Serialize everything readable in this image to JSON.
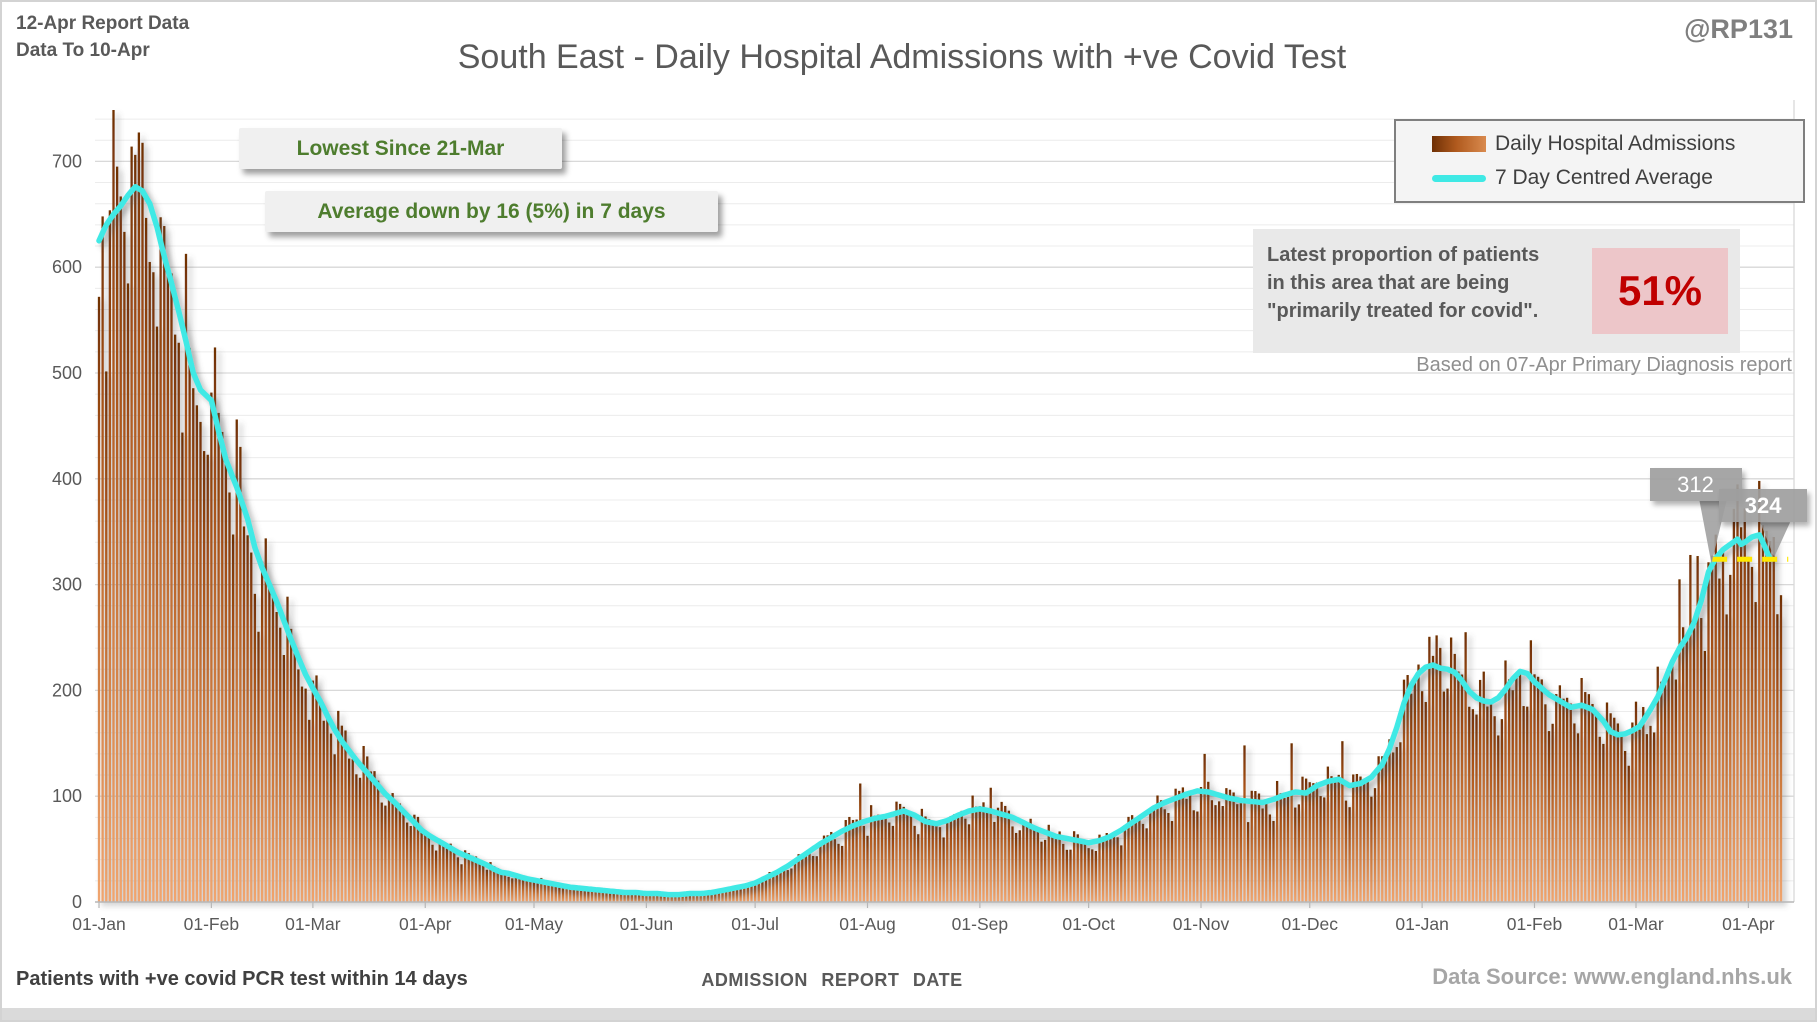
{
  "header": {
    "report_line1": "12-Apr Report Data",
    "report_line2": "Data To 10-Apr",
    "watermark": "@RP131",
    "title": "South East - Daily Hospital Admissions with +ve Covid Test"
  },
  "legend": {
    "items": [
      {
        "label": "Daily Hospital Admissions",
        "type": "bar"
      },
      {
        "label": "7 Day Centred Average",
        "type": "line"
      }
    ]
  },
  "annotations": {
    "chip1": "Lowest Since 21-Mar",
    "chip2": "Average down by 16 (5%) in 7 days"
  },
  "info_panel": {
    "line1": "Latest proportion of patients",
    "line2": "in this area that are being",
    "line3": "\"primarily treated for covid\".",
    "value": "51%",
    "footnote": "Based on 07-Apr Primary Diagnosis report"
  },
  "callouts": [
    {
      "label": "312",
      "day": 444,
      "value": 312
    },
    {
      "label": "324",
      "day": 461,
      "value": 324
    }
  ],
  "footer": {
    "left": "Patients with +ve covid PCR test within 14 days",
    "center": "ADMISSION REPORT DATE",
    "right": "Data Source: www.england.nhs.uk"
  },
  "chart_data": {
    "type": "bar",
    "title": "South East - Daily Hospital Admissions with +ve Covid Test",
    "xlabel": "ADMISSION REPORT DATE",
    "ylabel": "Patients with +ve covid PCR test within 14 days",
    "x_start_date": "2021-01-01",
    "x_end_date": "2022-04-10",
    "days_total": 465,
    "avg_days_total": 462,
    "grid": true,
    "legend_position": "top-right",
    "y_axis": {
      "min": 0,
      "max": 720,
      "major_step": 100,
      "minor_step": 20,
      "top_minor_extent": 740
    },
    "x_axis": {
      "months": [
        {
          "label": "01-Jan",
          "day": 0
        },
        {
          "label": "01-Feb",
          "day": 31
        },
        {
          "label": "01-Mar",
          "day": 59
        },
        {
          "label": "01-Apr",
          "day": 90
        },
        {
          "label": "01-May",
          "day": 120
        },
        {
          "label": "01-Jun",
          "day": 151
        },
        {
          "label": "01-Jul",
          "day": 181
        },
        {
          "label": "01-Aug",
          "day": 212
        },
        {
          "label": "01-Sep",
          "day": 243
        },
        {
          "label": "01-Oct",
          "day": 273
        },
        {
          "label": "01-Nov",
          "day": 304
        },
        {
          "label": "01-Dec",
          "day": 334
        },
        {
          "label": "01-Jan",
          "day": 365
        },
        {
          "label": "01-Feb",
          "day": 396
        },
        {
          "label": "01-Mar",
          "day": 424
        },
        {
          "label": "01-Apr",
          "day": 455
        }
      ]
    },
    "series": [
      {
        "name": "Daily Hospital Admissions",
        "type": "bar"
      },
      {
        "name": "7 Day Centred Average",
        "type": "line"
      }
    ],
    "avg_anchors": [
      [
        0,
        625
      ],
      [
        2,
        640
      ],
      [
        4,
        650
      ],
      [
        6,
        658
      ],
      [
        8,
        668
      ],
      [
        10,
        676
      ],
      [
        12,
        672
      ],
      [
        14,
        660
      ],
      [
        16,
        638
      ],
      [
        18,
        610
      ],
      [
        20,
        585
      ],
      [
        22,
        558
      ],
      [
        24,
        530
      ],
      [
        26,
        500
      ],
      [
        28,
        484
      ],
      [
        31,
        474
      ],
      [
        33,
        445
      ],
      [
        35,
        418
      ],
      [
        38,
        392
      ],
      [
        41,
        362
      ],
      [
        43,
        335
      ],
      [
        45,
        316
      ],
      [
        47,
        300
      ],
      [
        49,
        284
      ],
      [
        51,
        266
      ],
      [
        53,
        248
      ],
      [
        55,
        231
      ],
      [
        57,
        215
      ],
      [
        59,
        202
      ],
      [
        61,
        190
      ],
      [
        63,
        176
      ],
      [
        65,
        163
      ],
      [
        67,
        152
      ],
      [
        69,
        143
      ],
      [
        71,
        134
      ],
      [
        73,
        126
      ],
      [
        75,
        118
      ],
      [
        77,
        110
      ],
      [
        79,
        102
      ],
      [
        81,
        96
      ],
      [
        83,
        89
      ],
      [
        85,
        82
      ],
      [
        87,
        75
      ],
      [
        89,
        68
      ],
      [
        91,
        63
      ],
      [
        93,
        59
      ],
      [
        95,
        55
      ],
      [
        97,
        51
      ],
      [
        99,
        47
      ],
      [
        101,
        44
      ],
      [
        103,
        41
      ],
      [
        105,
        38
      ],
      [
        107,
        35
      ],
      [
        109,
        31
      ],
      [
        111,
        28
      ],
      [
        113,
        27
      ],
      [
        115,
        25
      ],
      [
        118,
        22
      ],
      [
        121,
        20
      ],
      [
        124,
        18
      ],
      [
        127,
        16
      ],
      [
        130,
        14
      ],
      [
        133,
        13
      ],
      [
        136,
        12
      ],
      [
        139,
        11
      ],
      [
        142,
        10
      ],
      [
        145,
        9
      ],
      [
        148,
        9
      ],
      [
        151,
        8
      ],
      [
        154,
        8
      ],
      [
        157,
        7
      ],
      [
        160,
        7
      ],
      [
        163,
        8
      ],
      [
        166,
        8
      ],
      [
        169,
        9
      ],
      [
        172,
        11
      ],
      [
        175,
        13
      ],
      [
        178,
        15
      ],
      [
        181,
        18
      ],
      [
        184,
        23
      ],
      [
        187,
        28
      ],
      [
        190,
        34
      ],
      [
        193,
        41
      ],
      [
        196,
        48
      ],
      [
        199,
        55
      ],
      [
        202,
        61
      ],
      [
        205,
        67
      ],
      [
        208,
        72
      ],
      [
        211,
        76
      ],
      [
        214,
        79
      ],
      [
        217,
        81
      ],
      [
        220,
        84
      ],
      [
        222,
        86
      ],
      [
        225,
        82
      ],
      [
        228,
        76
      ],
      [
        231,
        74
      ],
      [
        234,
        77
      ],
      [
        237,
        82
      ],
      [
        240,
        86
      ],
      [
        243,
        88
      ],
      [
        246,
        86
      ],
      [
        249,
        83
      ],
      [
        252,
        80
      ],
      [
        255,
        75
      ],
      [
        258,
        70
      ],
      [
        261,
        66
      ],
      [
        264,
        62
      ],
      [
        267,
        60
      ],
      [
        270,
        58
      ],
      [
        273,
        56
      ],
      [
        276,
        58
      ],
      [
        279,
        62
      ],
      [
        282,
        68
      ],
      [
        285,
        75
      ],
      [
        288,
        82
      ],
      [
        291,
        89
      ],
      [
        294,
        94
      ],
      [
        297,
        98
      ],
      [
        300,
        102
      ],
      [
        303,
        105
      ],
      [
        306,
        104
      ],
      [
        309,
        101
      ],
      [
        312,
        98
      ],
      [
        315,
        96
      ],
      [
        318,
        95
      ],
      [
        321,
        94
      ],
      [
        324,
        97
      ],
      [
        327,
        101
      ],
      [
        330,
        104
      ],
      [
        333,
        103
      ],
      [
        336,
        110
      ],
      [
        339,
        114
      ],
      [
        342,
        116
      ],
      [
        345,
        110
      ],
      [
        348,
        112
      ],
      [
        351,
        118
      ],
      [
        354,
        130
      ],
      [
        356,
        145
      ],
      [
        358,
        165
      ],
      [
        360,
        188
      ],
      [
        362,
        205
      ],
      [
        364,
        216
      ],
      [
        366,
        222
      ],
      [
        368,
        224
      ],
      [
        370,
        221
      ],
      [
        372,
        220
      ],
      [
        374,
        217
      ],
      [
        376,
        209
      ],
      [
        378,
        199
      ],
      [
        380,
        193
      ],
      [
        382,
        190
      ],
      [
        384,
        189
      ],
      [
        386,
        193
      ],
      [
        388,
        201
      ],
      [
        390,
        211
      ],
      [
        392,
        218
      ],
      [
        394,
        216
      ],
      [
        396,
        208
      ],
      [
        398,
        202
      ],
      [
        400,
        196
      ],
      [
        403,
        190
      ],
      [
        406,
        184
      ],
      [
        409,
        186
      ],
      [
        412,
        182
      ],
      [
        415,
        171
      ],
      [
        417,
        161
      ],
      [
        419,
        158
      ],
      [
        421,
        159
      ],
      [
        423,
        162
      ],
      [
        425,
        166
      ],
      [
        428,
        182
      ],
      [
        430,
        194
      ],
      [
        432,
        210
      ],
      [
        434,
        227
      ],
      [
        436,
        240
      ],
      [
        438,
        250
      ],
      [
        440,
        264
      ],
      [
        442,
        285
      ],
      [
        444,
        312
      ],
      [
        446,
        325
      ],
      [
        448,
        333
      ],
      [
        450,
        338
      ],
      [
        452,
        343
      ],
      [
        453,
        338
      ],
      [
        454,
        340
      ],
      [
        456,
        345
      ],
      [
        458,
        347
      ],
      [
        459,
        340
      ],
      [
        460,
        332
      ],
      [
        461,
        324
      ]
    ],
    "weekday_factors": [
      1.09,
      1.07,
      1.03,
      1.01,
      0.97,
      0.88,
      0.85
    ],
    "weekday_offset": 4,
    "jitter": 0.16,
    "seed": 7,
    "bar_overrides": {
      "0": 572,
      "1": 648,
      "9": 714,
      "210": 112,
      "246": 108,
      "305": 140,
      "316": 148,
      "329": 150,
      "343": 152,
      "369": 252,
      "373": 250,
      "377": 255,
      "436": 305,
      "439": 328,
      "441": 327,
      "454": 372,
      "458": 398,
      "462": 345,
      "463": 272,
      "464": 290
    },
    "dash_marker": {
      "value": 324,
      "from_day": 445,
      "to_day": 466,
      "color": "#ffe800"
    },
    "colors": {
      "bar_top": "#6f3005",
      "bar_mid": "#b05a1e",
      "bar_bottom": "#f0a56f",
      "line": "#3fe9e5",
      "grid_minor": "#ececec",
      "grid_major": "#d9d9d9",
      "axis": "#b7b7b7",
      "tick_label": "#595959",
      "accent_green": "#4e7d2e",
      "accent_red": "#c00000",
      "callout_gray": "#9e9e9e"
    }
  }
}
